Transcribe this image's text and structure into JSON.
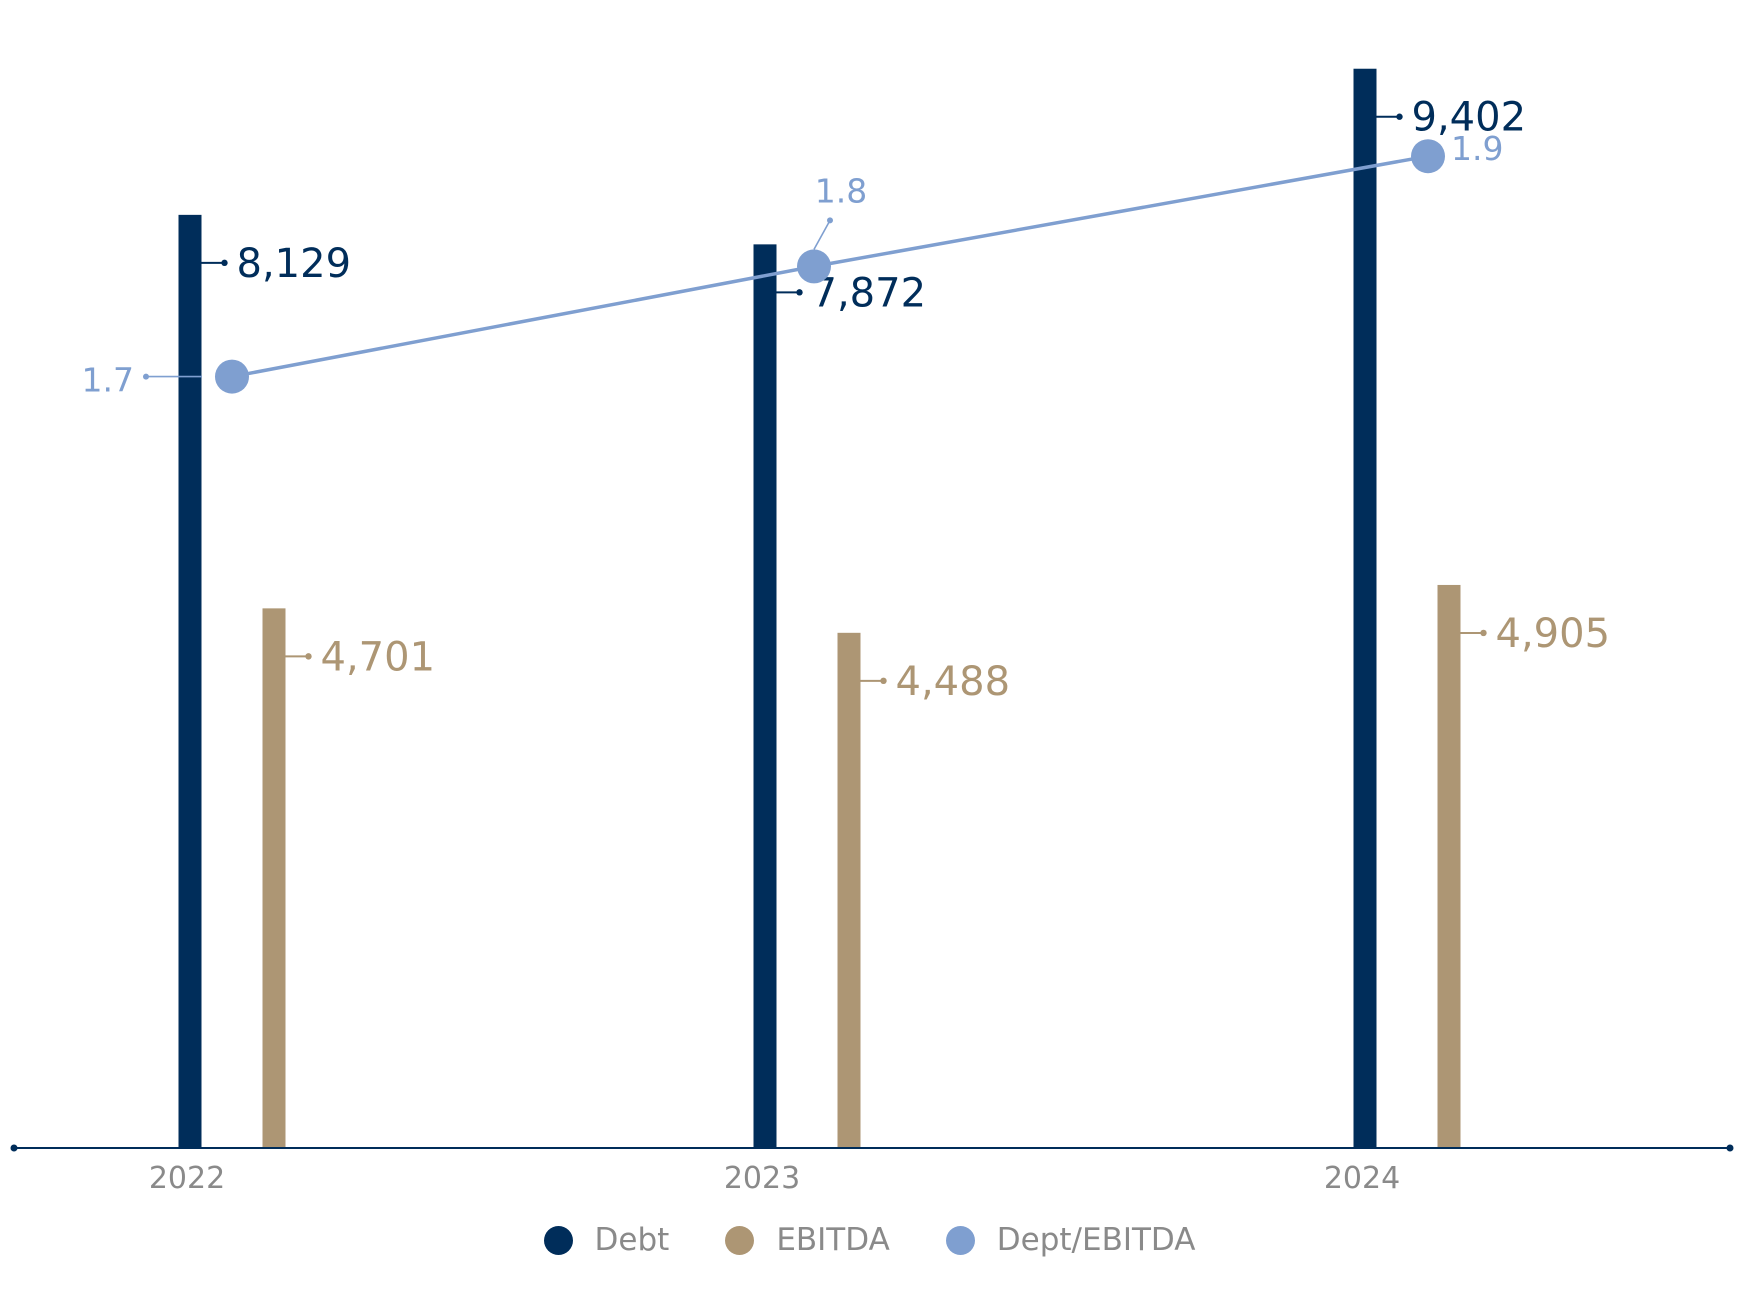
{
  "chart_data": {
    "type": "bar",
    "categories": [
      "2022",
      "2023",
      "2024"
    ],
    "series": [
      {
        "name": "Debt",
        "type": "bar",
        "axis": "left",
        "values": [
          8129,
          7872,
          9402
        ],
        "labels": [
          "8,129",
          "7,872",
          "9,402"
        ],
        "color": "#002d5a"
      },
      {
        "name": "EBITDA",
        "type": "bar",
        "axis": "left",
        "values": [
          4701,
          4488,
          4905
        ],
        "labels": [
          "4,701",
          "4,488",
          "4,905"
        ],
        "color": "#ad9674"
      },
      {
        "name": "Dept/EBITDA",
        "type": "line",
        "axis": "right",
        "values": [
          1.7,
          1.8,
          1.9
        ],
        "labels": [
          "1.7",
          "1.8",
          "1.9"
        ],
        "color": "#7f9fd0"
      }
    ],
    "ylim_left": [
      0,
      9600
    ],
    "ylim_right": [
      1.0,
      2.0
    ],
    "grid": false,
    "legend_position": "bottom-center",
    "axis_color": "#002d5a",
    "tick_label_color": "#8a8a8a"
  }
}
